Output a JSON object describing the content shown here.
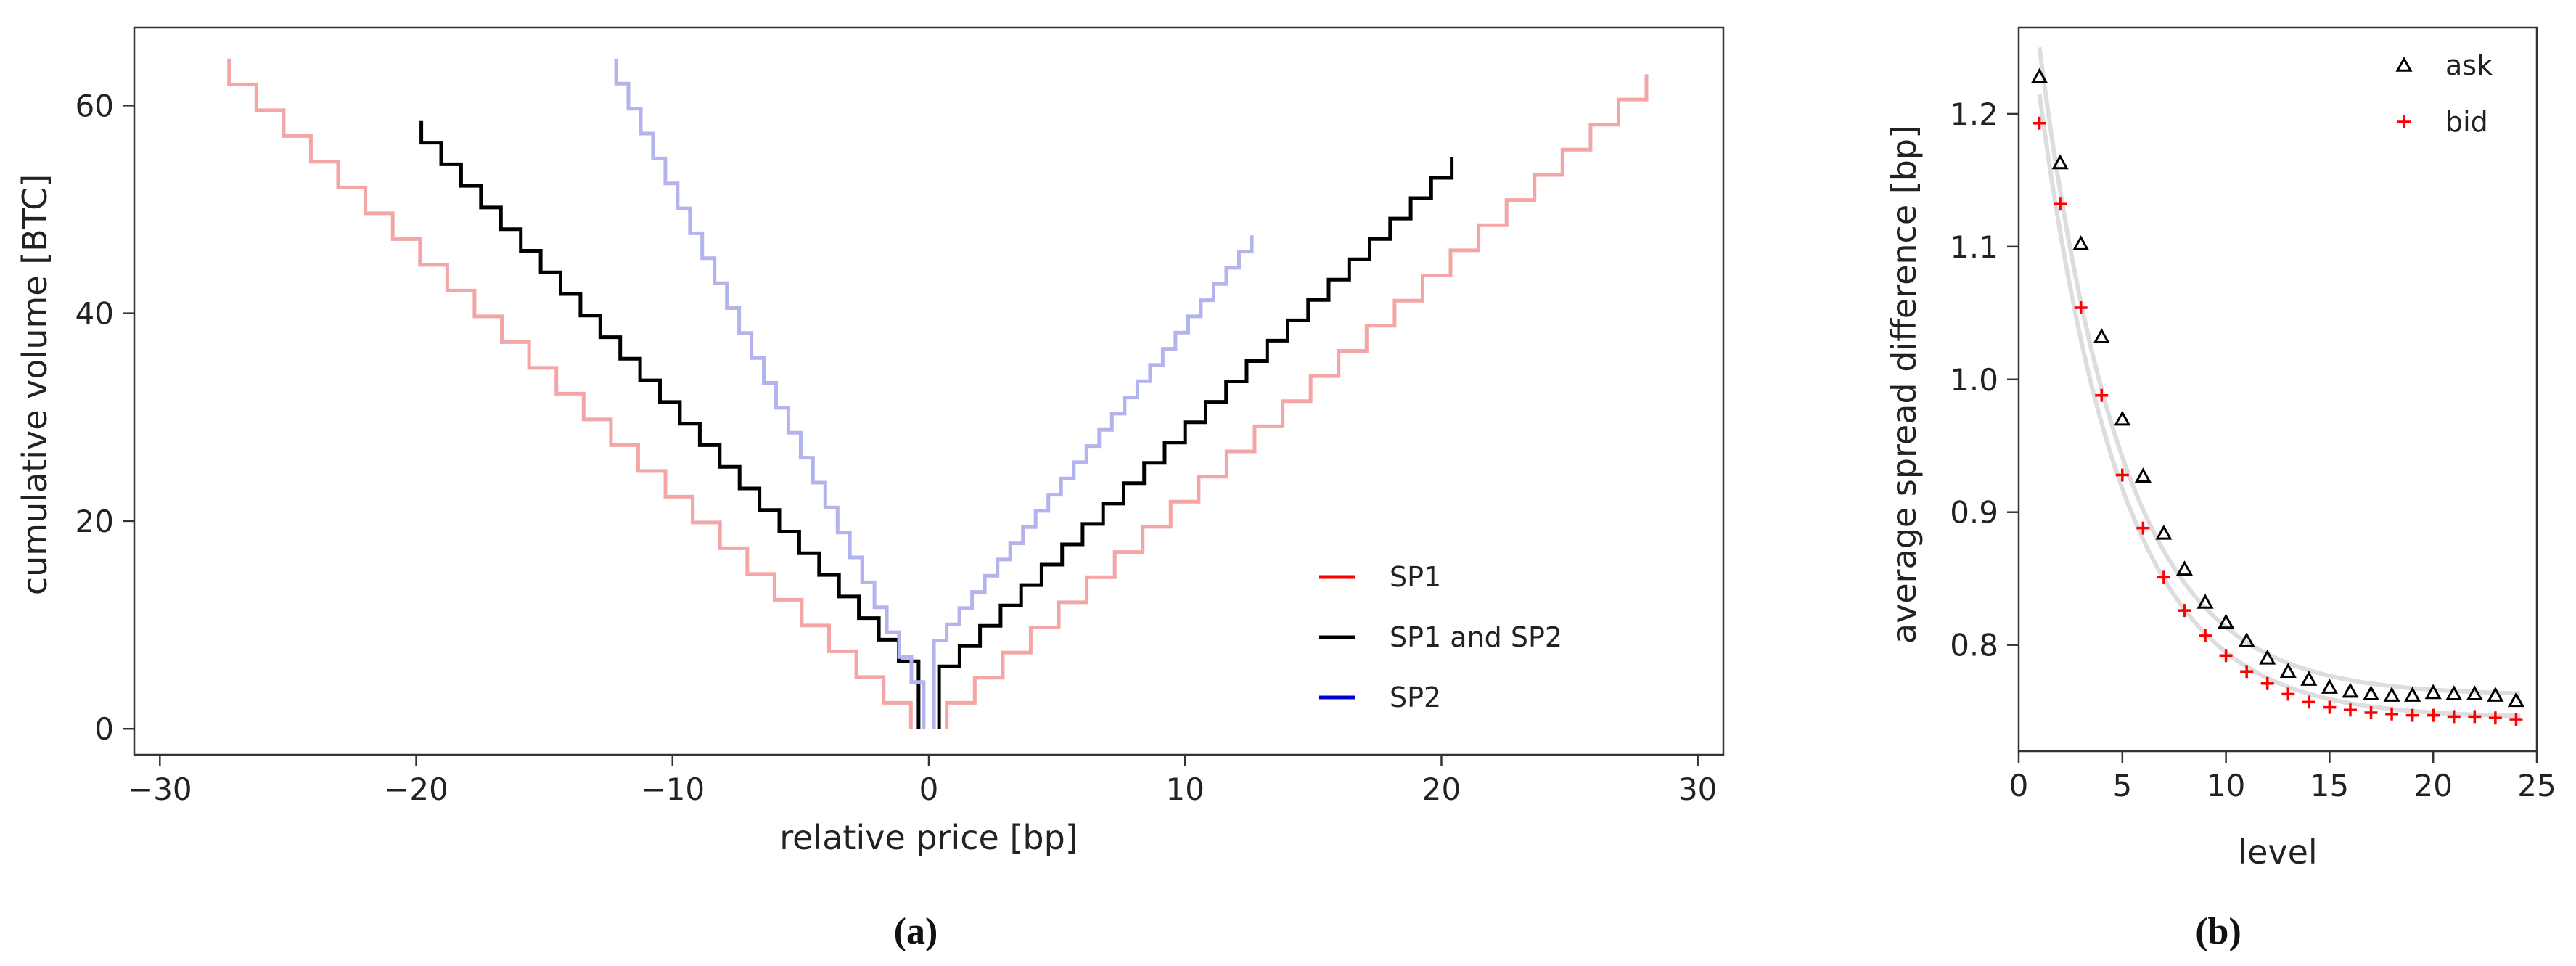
{
  "chart_data": [
    {
      "type": "line",
      "panel_label": "(a)",
      "title": "",
      "xlabel": "relative price [bp]",
      "ylabel": "cumulative volume [BTC]",
      "xlim": [
        -31,
        31
      ],
      "ylim": [
        -2.5,
        67.5
      ],
      "xticks": [
        -30,
        -20,
        -10,
        0,
        10,
        20,
        30
      ],
      "yticks": [
        0,
        20,
        40,
        60
      ],
      "xtick_labels": [
        "−30",
        "−20",
        "−10",
        "0",
        "10",
        "20",
        "30"
      ],
      "ytick_labels": [
        "0",
        "20",
        "40",
        "60"
      ],
      "grid": false,
      "legend_position": "bottom-right",
      "legend": [
        {
          "label": "SP1",
          "color": "#ff0000"
        },
        {
          "label": "SP1 and SP2",
          "color": "#000000"
        },
        {
          "label": "SP2",
          "color": "#0000cc"
        }
      ],
      "series": [
        {
          "name": "SP1",
          "color": "#f4a6a6",
          "side": "bid",
          "start_x": -0.7,
          "end_x": -27.3,
          "steps": 25,
          "start_y": 0,
          "first_jump": 2.5,
          "end_y": 64.5
        },
        {
          "name": "SP1",
          "color": "#f4a6a6",
          "side": "ask",
          "start_x": 0.7,
          "end_x": 28.0,
          "steps": 25,
          "start_y": 0,
          "first_jump": 2.5,
          "end_y": 63.0
        },
        {
          "name": "SP1 and SP2",
          "color": "#000000",
          "side": "bid",
          "start_x": -0.4,
          "end_x": -19.8,
          "steps": 25,
          "start_y": 0,
          "first_jump": 6.5,
          "end_y": 58.5
        },
        {
          "name": "SP1 and SP2",
          "color": "#000000",
          "side": "ask",
          "start_x": 0.4,
          "end_x": 20.4,
          "steps": 25,
          "start_y": 0,
          "first_jump": 6.0,
          "end_y": 55.0
        },
        {
          "name": "SP2",
          "color": "#b3b3ee",
          "side": "bid",
          "start_x": -0.2,
          "end_x": -12.2,
          "steps": 25,
          "start_y": 0,
          "first_jump": 4.5,
          "end_y": 64.5
        },
        {
          "name": "SP2",
          "color": "#b3b3ee",
          "side": "ask",
          "start_x": 0.2,
          "end_x": 12.6,
          "steps": 25,
          "start_y": 0,
          "first_jump": 8.5,
          "end_y": 47.5
        }
      ]
    },
    {
      "type": "scatter",
      "panel_label": "(b)",
      "title": "",
      "xlabel": "level",
      "ylabel": "average spread difference [bp]",
      "xlim": [
        0,
        25
      ],
      "ylim": [
        0.72,
        1.265
      ],
      "xticks": [
        0,
        5,
        10,
        15,
        20,
        25
      ],
      "yticks": [
        0.8,
        0.9,
        1.0,
        1.1,
        1.2
      ],
      "xtick_labels": [
        "0",
        "5",
        "10",
        "15",
        "20",
        "25"
      ],
      "ytick_labels": [
        "0.8",
        "0.9",
        "1.0",
        "1.1",
        "1.2"
      ],
      "grid": false,
      "legend_position": "top-right",
      "legend": [
        {
          "label": "ask",
          "marker": "triangle",
          "color": "#000000"
        },
        {
          "label": "bid",
          "marker": "plus",
          "color": "#ff0000"
        }
      ],
      "x": [
        1,
        2,
        3,
        4,
        5,
        6,
        7,
        8,
        9,
        10,
        11,
        12,
        13,
        14,
        15,
        16,
        17,
        18,
        19,
        20,
        21,
        22,
        23,
        24
      ],
      "series": [
        {
          "name": "ask",
          "marker": "triangle",
          "color": "#000000",
          "values": [
            1.228,
            1.163,
            1.102,
            1.032,
            0.97,
            0.927,
            0.884,
            0.857,
            0.832,
            0.817,
            0.803,
            0.79,
            0.78,
            0.774,
            0.768,
            0.765,
            0.763,
            0.762,
            0.762,
            0.764,
            0.763,
            0.763,
            0.762,
            0.758
          ]
        },
        {
          "name": "bid",
          "marker": "plus",
          "color": "#ff0000",
          "values": [
            1.193,
            1.132,
            1.054,
            0.988,
            0.928,
            0.888,
            0.851,
            0.826,
            0.807,
            0.792,
            0.78,
            0.771,
            0.763,
            0.757,
            0.753,
            0.751,
            0.749,
            0.748,
            0.747,
            0.747,
            0.746,
            0.746,
            0.745,
            0.744
          ]
        }
      ],
      "fit_curves": [
        {
          "name": "ask fit",
          "color": "#dddddd",
          "start": 1.25,
          "floor": 0.762,
          "rate": 0.25
        },
        {
          "name": "bid fit",
          "color": "#dddddd",
          "start": 1.215,
          "floor": 0.745,
          "rate": 0.25
        }
      ]
    }
  ]
}
